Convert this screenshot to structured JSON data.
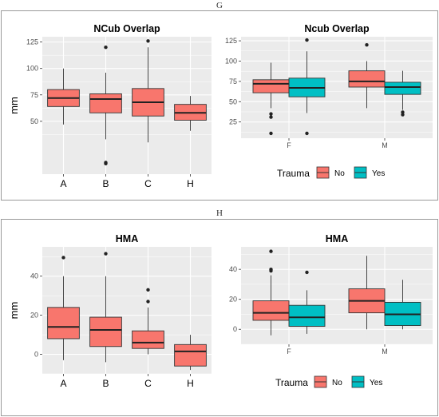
{
  "figure": {
    "panel_G_label": "G",
    "panel_H_label": "H"
  },
  "colors": {
    "no": "#F8766D",
    "yes": "#00BFC4",
    "panel_bg": "#EBEBEB",
    "grid": "#FFFFFF",
    "frame": "#999999"
  },
  "legend": {
    "title": "Trauma",
    "no_label": "No",
    "yes_label": "Yes"
  },
  "chart_data": [
    {
      "id": "G-left",
      "type": "box",
      "title": "NCub Overlap",
      "ylabel": "mm",
      "categories": [
        "A",
        "B",
        "C",
        "H"
      ],
      "ylim": [
        0,
        130
      ],
      "yticks": [
        50,
        75,
        100,
        125
      ],
      "boxes": [
        {
          "cat": "A",
          "whislo": 47,
          "q1": 64,
          "med": 72,
          "q3": 80,
          "whishi": 100,
          "fliers": []
        },
        {
          "cat": "B",
          "whislo": 33,
          "q1": 58,
          "med": 71,
          "q3": 76,
          "whishi": 96,
          "fliers": [
            120,
            11,
            10
          ]
        },
        {
          "cat": "C",
          "whislo": 30,
          "q1": 55,
          "med": 68,
          "q3": 81,
          "whishi": 120,
          "fliers": [
            126
          ]
        },
        {
          "cat": "H",
          "whislo": 41,
          "q1": 51,
          "med": 58,
          "q3": 66,
          "whishi": 74,
          "fliers": []
        }
      ]
    },
    {
      "id": "G-right",
      "type": "box",
      "title": "Ncub Overlap",
      "categories": [
        "F",
        "M"
      ],
      "ylim": [
        5,
        130
      ],
      "yticks": [
        25,
        50,
        75,
        100,
        125
      ],
      "series": [
        {
          "name": "No",
          "boxes": [
            {
              "cat": "F",
              "whislo": 42,
              "q1": 61,
              "med": 72,
              "q3": 77,
              "whishi": 98,
              "fliers": [
                35,
                31,
                11
              ]
            },
            {
              "cat": "M",
              "whislo": 42,
              "q1": 68,
              "med": 75,
              "q3": 88,
              "whishi": 100,
              "fliers": [
                120
              ]
            }
          ]
        },
        {
          "name": "Yes",
          "boxes": [
            {
              "cat": "F",
              "whislo": 36,
              "q1": 56,
              "med": 67,
              "q3": 79,
              "whishi": 112,
              "fliers": [
                126,
                11
              ]
            },
            {
              "cat": "M",
              "whislo": 40,
              "q1": 59,
              "med": 68,
              "q3": 74,
              "whishi": 88,
              "fliers": [
                37,
                34
              ]
            }
          ]
        }
      ]
    },
    {
      "id": "H-left",
      "type": "box",
      "title": "HMA",
      "ylabel": "mm",
      "categories": [
        "A",
        "B",
        "C",
        "H"
      ],
      "ylim": [
        -10,
        55
      ],
      "yticks": [
        0,
        20,
        40
      ],
      "boxes": [
        {
          "cat": "A",
          "whislo": -3,
          "q1": 8,
          "med": 14,
          "q3": 24,
          "whishi": 40,
          "fliers": [
            49.5
          ]
        },
        {
          "cat": "B",
          "whislo": -4,
          "q1": 4,
          "med": 12.5,
          "q3": 19,
          "whishi": 40,
          "fliers": [
            51.5
          ]
        },
        {
          "cat": "C",
          "whislo": 0,
          "q1": 3,
          "med": 6,
          "q3": 12,
          "whishi": 24,
          "fliers": [
            33,
            27
          ]
        },
        {
          "cat": "H",
          "whislo": -8,
          "q1": -6,
          "med": 1.5,
          "q3": 5,
          "whishi": 10,
          "fliers": []
        }
      ]
    },
    {
      "id": "H-right",
      "type": "box",
      "title": "HMA",
      "categories": [
        "F",
        "M"
      ],
      "ylim": [
        -10,
        55
      ],
      "yticks": [
        0,
        20,
        40
      ],
      "series": [
        {
          "name": "No",
          "boxes": [
            {
              "cat": "F",
              "whislo": -4,
              "q1": 6,
              "med": 11,
              "q3": 19,
              "whishi": 36,
              "fliers": [
                52,
                40,
                39
              ]
            },
            {
              "cat": "M",
              "whislo": 0,
              "q1": 11,
              "med": 19,
              "q3": 27,
              "whishi": 49,
              "fliers": []
            }
          ]
        },
        {
          "name": "Yes",
          "boxes": [
            {
              "cat": "F",
              "whislo": -3,
              "q1": 2,
              "med": 8,
              "q3": 16,
              "whishi": 26,
              "fliers": [
                38
              ]
            },
            {
              "cat": "M",
              "whislo": 0,
              "q1": 2.5,
              "med": 10,
              "q3": 18,
              "whishi": 33,
              "fliers": []
            }
          ]
        }
      ]
    }
  ]
}
